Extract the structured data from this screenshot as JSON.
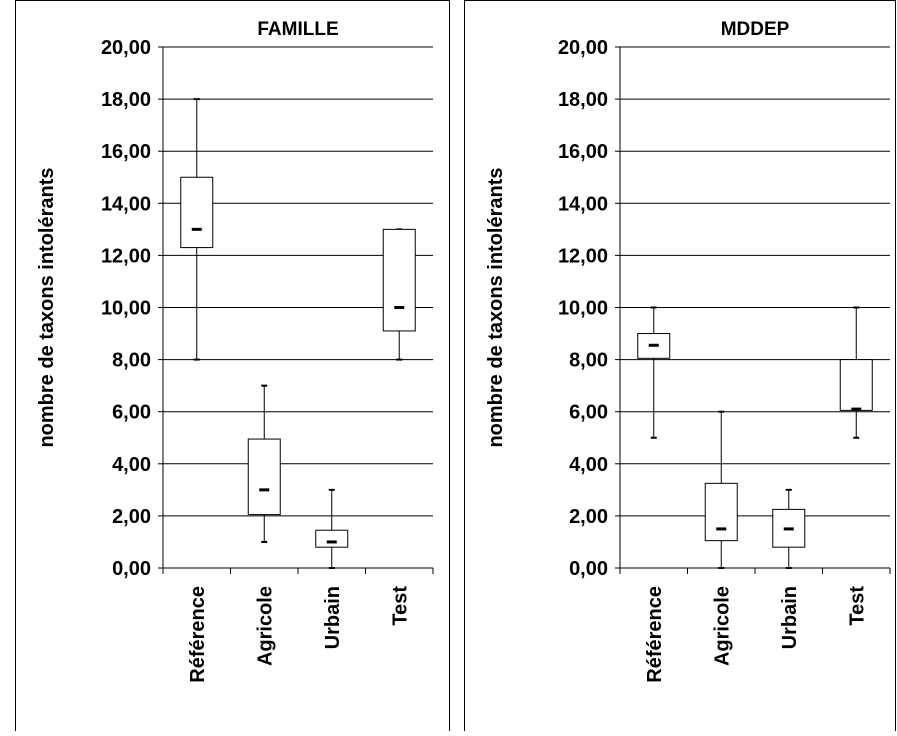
{
  "chart_data": [
    {
      "type": "box",
      "title": "FAMILLE",
      "y_label": "nombre de taxons intolérants",
      "categories": [
        "Référence",
        "Agricole",
        "Urbain",
        "Test"
      ],
      "boxes": [
        {
          "min": 8,
          "q1": 12.3,
          "median": 13,
          "q3": 15,
          "max": 18
        },
        {
          "min": 1,
          "q1": 2.05,
          "median": 3,
          "q3": 4.95,
          "max": 7
        },
        {
          "min": 0,
          "q1": 0.8,
          "median": 1,
          "q3": 1.45,
          "max": 3
        },
        {
          "min": 8,
          "q1": 9.1,
          "median": 10,
          "q3": 13,
          "max": 13
        }
      ],
      "ylim": [
        0,
        20
      ],
      "yticks": [
        {
          "value": 0,
          "label": "0,00"
        },
        {
          "value": 2,
          "label": "2,00"
        },
        {
          "value": 4,
          "label": "4,00"
        },
        {
          "value": 6,
          "label": "6,00"
        },
        {
          "value": 8,
          "label": "8,00"
        },
        {
          "value": 10,
          "label": "10,00"
        },
        {
          "value": 12,
          "label": "12,00"
        },
        {
          "value": 14,
          "label": "14,00"
        },
        {
          "value": 16,
          "label": "16,00"
        },
        {
          "value": 18,
          "label": "18,00"
        },
        {
          "value": 20,
          "label": "20,00"
        }
      ],
      "grid": true,
      "color": "#000000"
    },
    {
      "type": "box",
      "title": "MDDEP",
      "y_label": "nombre de taxons intolérants",
      "categories": [
        "Référence",
        "Agricole",
        "Urbain",
        "Test"
      ],
      "boxes": [
        {
          "min": 5,
          "q1": 8.05,
          "median": 8.55,
          "q3": 9,
          "max": 10
        },
        {
          "min": 0,
          "q1": 1.05,
          "median": 1.5,
          "q3": 3.25,
          "max": 6
        },
        {
          "min": 0,
          "q1": 0.8,
          "median": 1.5,
          "q3": 2.25,
          "max": 3
        },
        {
          "min": 5,
          "q1": 6.05,
          "median": 6.1,
          "q3": 8,
          "max": 10
        }
      ],
      "ylim": [
        0,
        20
      ],
      "yticks": [
        {
          "value": 0,
          "label": "0,00"
        },
        {
          "value": 2,
          "label": "2,00"
        },
        {
          "value": 4,
          "label": "4,00"
        },
        {
          "value": 6,
          "label": "6,00"
        },
        {
          "value": 8,
          "label": "8,00"
        },
        {
          "value": 10,
          "label": "10,00"
        },
        {
          "value": 12,
          "label": "12,00"
        },
        {
          "value": 14,
          "label": "14,00"
        },
        {
          "value": 16,
          "label": "16,00"
        },
        {
          "value": 18,
          "label": "18,00"
        },
        {
          "value": 20,
          "label": "20,00"
        }
      ],
      "grid": true,
      "color": "#000000"
    }
  ]
}
